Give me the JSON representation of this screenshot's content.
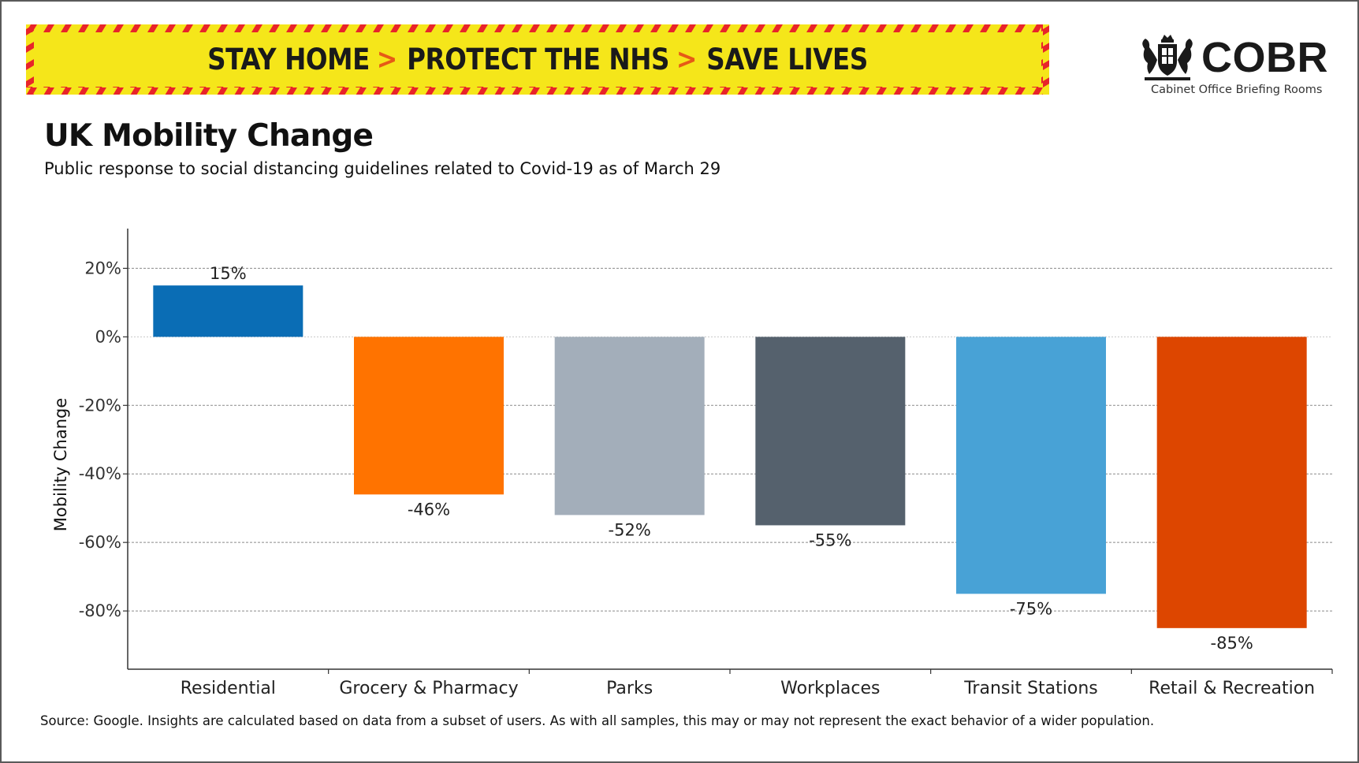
{
  "banner": {
    "parts": [
      "STAY HOME",
      "PROTECT THE NHS",
      "SAVE LIVES"
    ],
    "separator": ">",
    "background": "#f5e61a",
    "stripe_color": "#e8242a",
    "separator_color": "#e65a16"
  },
  "logo": {
    "title": "COBR",
    "subtitle": "Cabinet Office Briefing Rooms",
    "crest": "royal-coat-of-arms"
  },
  "title": "UK Mobility Change",
  "subtitle": "Public response to social distancing guidelines related to Covid-19 as of March 29",
  "source": "Source: Google. Insights are calculated based on data from a subset of users. As with all samples, this may or may not represent the exact behavior of a wider population.",
  "chart_data": {
    "type": "bar",
    "categories": [
      "Residential",
      "Grocery & Pharmacy",
      "Parks",
      "Workplaces",
      "Transit Stations",
      "Retail & Recreation"
    ],
    "values": [
      15,
      -46,
      -52,
      -55,
      -75,
      -85
    ],
    "data_labels": [
      "15%",
      "-46%",
      "-52%",
      "-55%",
      "-75%",
      "-85%"
    ],
    "colors": [
      "#0a6db5",
      "#ff7300",
      "#a3aeba",
      "#55616d",
      "#48a2d6",
      "#dd4600"
    ],
    "ylabel": "Mobility Change",
    "xlabel": "",
    "ylim": [
      -97,
      27
    ],
    "yticks": [
      20,
      0,
      -20,
      -40,
      -60,
      -80
    ],
    "ytick_labels": [
      "20%",
      "0%",
      "-20%",
      "-40%",
      "-60%",
      "-80%"
    ],
    "grid": true,
    "legend": "none"
  }
}
